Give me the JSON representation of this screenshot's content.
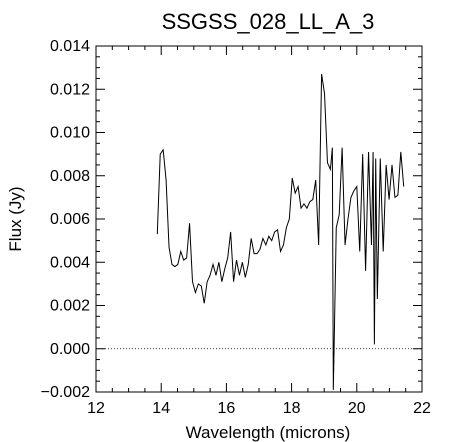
{
  "chart_data": {
    "type": "line",
    "title": "SSGSS_028_LL_A_3",
    "xlabel": "Wavelength (microns)",
    "ylabel": "Flux (Jy)",
    "xlim": [
      12,
      22
    ],
    "ylim": [
      -0.002,
      0.014
    ],
    "xticks": [
      12,
      14,
      16,
      18,
      20,
      22
    ],
    "xtick_labels": [
      "12",
      "14",
      "16",
      "18",
      "20",
      "22"
    ],
    "yticks": [
      -0.002,
      0.0,
      0.002,
      0.004,
      0.006,
      0.008,
      0.01,
      0.012,
      0.014
    ],
    "ytick_labels": [
      "−0.002",
      "0.000",
      "0.002",
      "0.004",
      "0.006",
      "0.008",
      "0.010",
      "0.012",
      "0.014"
    ],
    "reference_line": {
      "y": 0.0,
      "style": "dotted"
    },
    "grid": false,
    "legend": "none",
    "line_color": "#000000",
    "series": [
      {
        "x": [
          13.88,
          13.97,
          14.06,
          14.15,
          14.24,
          14.33,
          14.42,
          14.51,
          14.6,
          14.69,
          14.78,
          14.87,
          14.96,
          15.05,
          15.14,
          15.23,
          15.32,
          15.41,
          15.5,
          15.59,
          15.68,
          15.77,
          15.86,
          15.95,
          16.04,
          16.13,
          16.22,
          16.31,
          16.4,
          16.49,
          16.58,
          16.67,
          16.76,
          16.85,
          16.94,
          17.03,
          17.12,
          17.21,
          17.3,
          17.39,
          17.48,
          17.57,
          17.66,
          17.75,
          17.84,
          17.93,
          18.02,
          18.11,
          18.2,
          18.29,
          18.38,
          18.47,
          18.56,
          18.65,
          18.74,
          18.83,
          18.92,
          19.01,
          19.1,
          19.19,
          19.25,
          19.28,
          19.37,
          19.46,
          19.55,
          19.64,
          19.73,
          19.82,
          19.91,
          20.0,
          20.09,
          20.18,
          20.27,
          20.36,
          20.45,
          20.5,
          20.54,
          20.58,
          20.63,
          20.72,
          20.81,
          20.9,
          20.99,
          21.08,
          21.17,
          21.26,
          21.35,
          21.44
        ],
        "y": [
          0.0053,
          0.009,
          0.0092,
          0.0078,
          0.0047,
          0.0039,
          0.0038,
          0.0039,
          0.0045,
          0.0041,
          0.0042,
          0.0058,
          0.0031,
          0.0026,
          0.003,
          0.0029,
          0.0021,
          0.0031,
          0.0034,
          0.0039,
          0.0034,
          0.004,
          0.0031,
          0.0037,
          0.0042,
          0.0054,
          0.0031,
          0.0041,
          0.0034,
          0.004,
          0.0033,
          0.0039,
          0.0051,
          0.0044,
          0.0044,
          0.0046,
          0.0051,
          0.0048,
          0.0052,
          0.005,
          0.0054,
          0.0055,
          0.0045,
          0.0048,
          0.0056,
          0.006,
          0.0079,
          0.0072,
          0.0075,
          0.0065,
          0.0067,
          0.0065,
          0.0068,
          0.0069,
          0.0078,
          0.0048,
          0.0127,
          0.0118,
          0.0086,
          0.0083,
          0.0093,
          -0.0019,
          0.0056,
          0.0062,
          0.0093,
          0.0048,
          0.006,
          0.007,
          0.0073,
          0.0075,
          0.0045,
          0.009,
          0.0036,
          0.0091,
          0.0048,
          0.0091,
          0.0002,
          0.0088,
          0.0023,
          0.0088,
          0.0045,
          0.0085,
          0.0069,
          0.0085,
          0.007,
          0.0071,
          0.0091,
          0.0075
        ]
      }
    ]
  }
}
